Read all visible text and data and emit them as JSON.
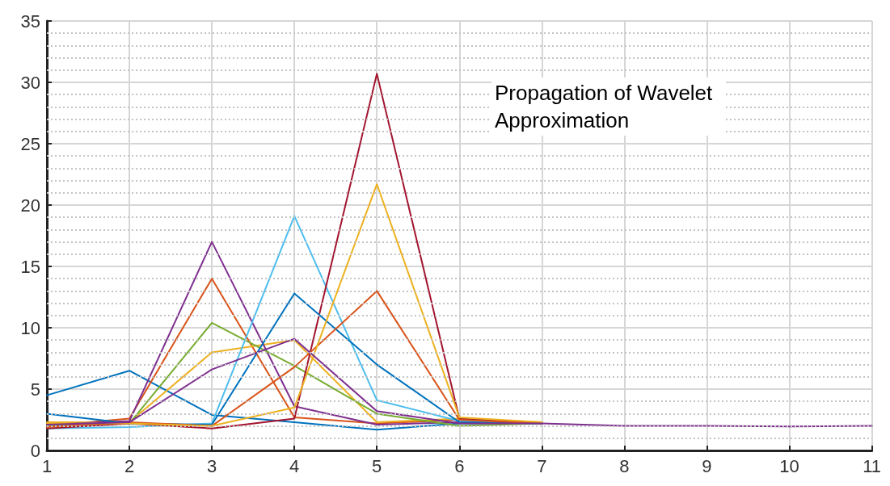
{
  "chart_data": {
    "type": "line",
    "annotations": [
      "Propagation of Wavelet Approximation"
    ],
    "x": [
      1,
      2,
      3,
      4,
      5,
      6,
      7,
      8,
      9,
      10,
      11
    ],
    "series": [
      {
        "color": "#0072bd",
        "values": [
          4.5,
          6.5,
          2.9,
          2.3,
          1.7,
          2.2,
          2.2,
          null,
          null,
          null,
          null
        ]
      },
      {
        "color": "#d95319",
        "values": [
          2.0,
          2.6,
          14.0,
          2.7,
          2.2,
          2.5,
          2.25,
          null,
          null,
          null,
          null
        ]
      },
      {
        "color": "#edb120",
        "values": [
          2.3,
          2.3,
          8.0,
          9.0,
          2.3,
          2.6,
          2.3,
          null,
          null,
          null,
          null
        ]
      },
      {
        "color": "#7e2f8e",
        "values": [
          2.1,
          2.4,
          17.0,
          3.6,
          2.1,
          2.3,
          2.2,
          null,
          null,
          null,
          null
        ]
      },
      {
        "color": "#77ac30",
        "values": [
          2.0,
          2.2,
          10.4,
          6.9,
          3.0,
          2.0,
          2.2,
          null,
          null,
          null,
          null
        ]
      },
      {
        "color": "#4dbeee",
        "values": [
          1.8,
          1.9,
          2.2,
          19.1,
          4.1,
          2.4,
          2.2,
          null,
          null,
          null,
          null
        ]
      },
      {
        "color": "#a2142f",
        "values": [
          1.8,
          2.2,
          1.8,
          2.6,
          30.7,
          2.6,
          2.2,
          null,
          null,
          null,
          null
        ]
      },
      {
        "color": "#0072bd",
        "values": [
          3.0,
          2.2,
          2.1,
          12.8,
          7.0,
          2.3,
          2.2,
          null,
          null,
          null,
          null
        ]
      },
      {
        "color": "#d95319",
        "values": [
          1.9,
          2.3,
          2.0,
          6.8,
          13.0,
          2.5,
          2.2,
          null,
          null,
          null,
          null
        ]
      },
      {
        "color": "#edb120",
        "values": [
          2.2,
          2.2,
          2.0,
          3.5,
          21.7,
          2.7,
          2.3,
          null,
          null,
          null,
          null
        ]
      },
      {
        "color": "#7e2f8e",
        "values": [
          2.1,
          2.3,
          6.6,
          9.1,
          3.2,
          2.2,
          2.2,
          2.0,
          2.0,
          1.95,
          2.0
        ]
      }
    ],
    "xlim": [
      1,
      11
    ],
    "xticks": [
      1,
      2,
      3,
      4,
      5,
      6,
      7,
      8,
      9,
      10,
      11
    ],
    "ylim": [
      0,
      35
    ],
    "yticks": [
      0,
      5,
      10,
      15,
      20,
      25,
      30,
      35
    ],
    "grid": true,
    "marker": "none",
    "line_style": "solid"
  }
}
